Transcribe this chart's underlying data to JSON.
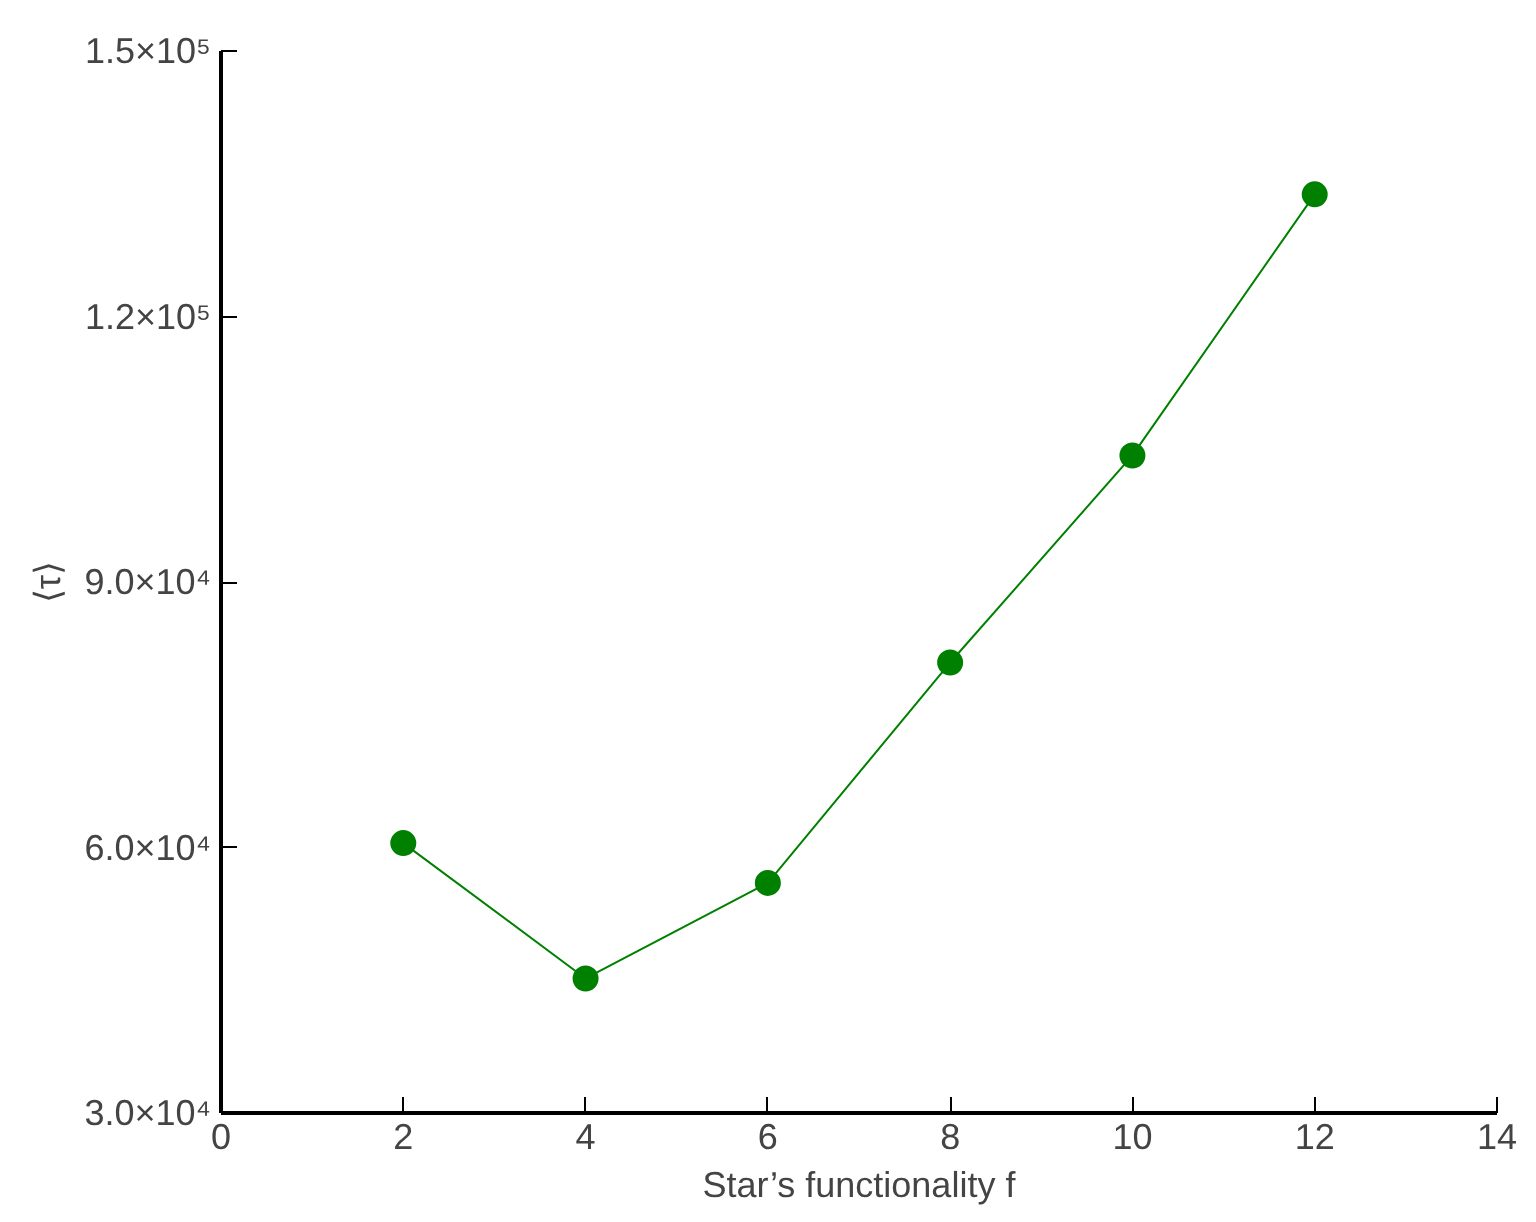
{
  "chart_data": {
    "type": "line",
    "xlabel": "Star’s functionality f",
    "ylabel": "⟨τ⟩",
    "x": [
      2,
      4,
      6,
      8,
      10,
      12
    ],
    "series": [
      {
        "color": "#008000",
        "values": [
          60500,
          45200,
          56000,
          80900,
          104300,
          133800
        ]
      }
    ],
    "xlim": [
      0,
      14
    ],
    "xticks": [
      0,
      2,
      4,
      6,
      8,
      10,
      12,
      14
    ],
    "ylim": [
      30000,
      150000
    ],
    "yticks": [
      {
        "value": 30000,
        "label": "3.0×10⁴"
      },
      {
        "value": 60000,
        "label": "6.0×10⁴"
      },
      {
        "value": 90000,
        "label": "9.0×10⁴"
      },
      {
        "value": 120000,
        "label": "1.2×10⁵"
      },
      {
        "value": 150000,
        "label": "1.5×10⁵"
      }
    ],
    "marker": "circle",
    "line_style": "solid",
    "grid": false
  }
}
